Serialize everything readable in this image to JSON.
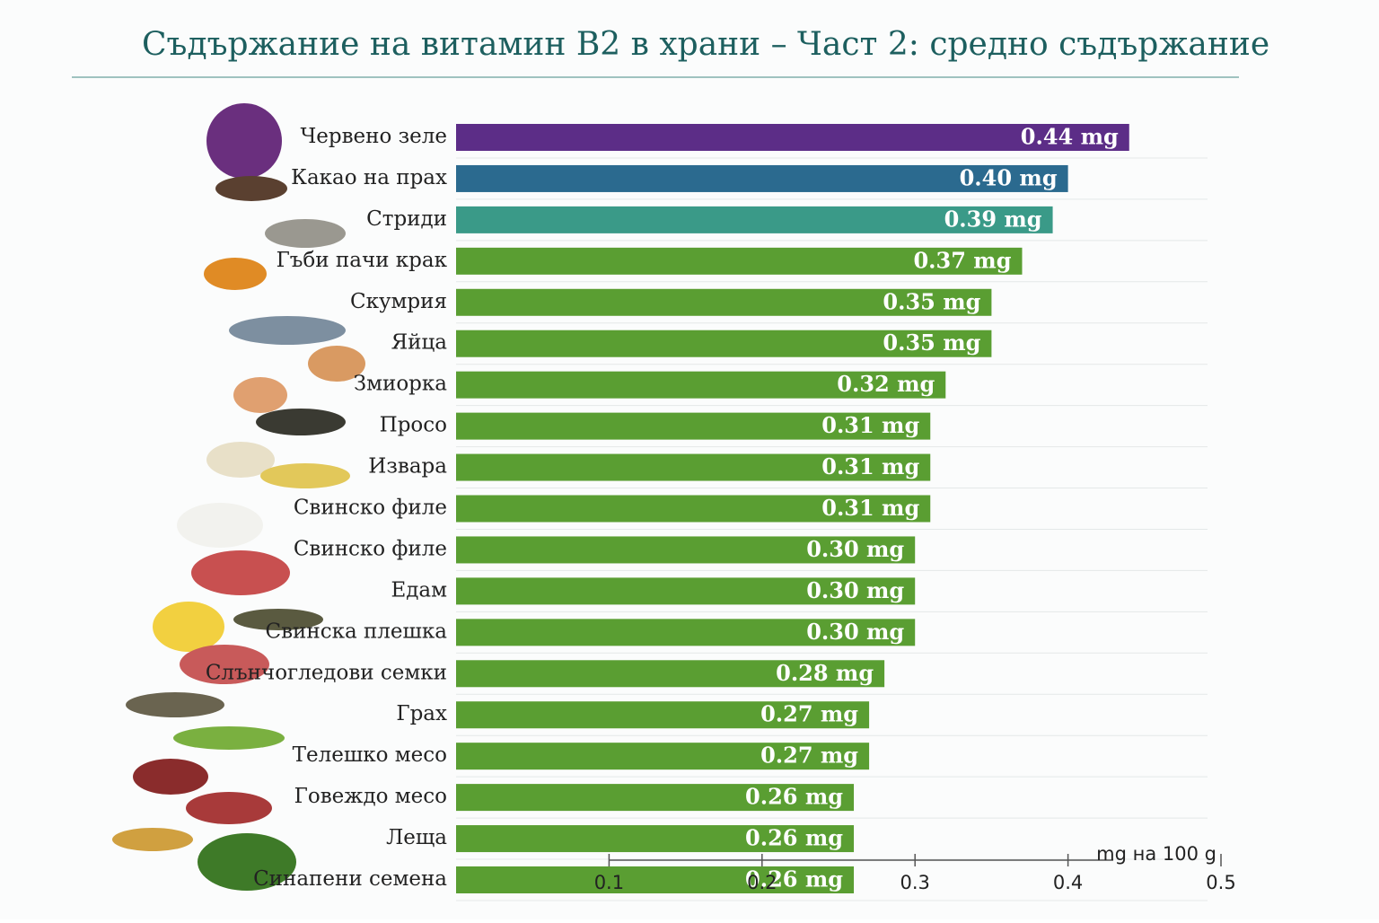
{
  "chart_data": {
    "type": "hbar",
    "title": "Съдържание на витамин B2 в храни – Част 2: средно съдържание",
    "x_label": "mg на 100 g",
    "categories": [
      "Червено зеле",
      "Какао на прах",
      "Стриди",
      "Гъби пачи крак",
      "Скумрия",
      "Яйца",
      "Змиорка",
      "Просо",
      "Извара",
      "Свинско филе",
      "Свинско филе",
      "Едам",
      "Свинска плешка",
      "Слънчогледови семки",
      "Грах",
      "Телешко месо",
      "Говеждо месо",
      "Леща",
      "Синапени семена"
    ],
    "values": [
      0.44,
      0.4,
      0.39,
      0.37,
      0.35,
      0.35,
      0.32,
      0.31,
      0.31,
      0.31,
      0.3,
      0.3,
      0.3,
      0.28,
      0.27,
      0.27,
      0.26,
      0.26,
      0.26
    ],
    "value_labels": [
      "0.44 mg",
      "0.40 mg",
      "0.39 mg",
      "0.37 mg",
      "0.35 mg",
      "0.35 mg",
      "0.32 mg",
      "0.31 mg",
      "0.31 mg",
      "0.31 mg",
      "0.30 mg",
      "0.30 mg",
      "0.30 mg",
      "0.28 mg",
      "0.27 mg",
      "0.27 mg",
      "0.26 mg",
      "0.26 mg",
      "0.26 mg"
    ],
    "colors": [
      "#5c2d87",
      "#2b6a8f",
      "#3a9a88",
      "#5a9e32",
      "#5a9e32",
      "#5a9e32",
      "#5a9e32",
      "#5a9e32",
      "#5a9e32",
      "#5a9e32",
      "#5a9e32",
      "#5a9e32",
      "#5a9e32",
      "#5a9e32",
      "#5a9e32",
      "#5a9e32",
      "#5a9e32",
      "#5a9e32",
      "#5a9e32"
    ],
    "xlim": [
      0,
      0.5
    ],
    "xticks": [
      0.1,
      0.2,
      0.3,
      0.4,
      0.5
    ]
  }
}
